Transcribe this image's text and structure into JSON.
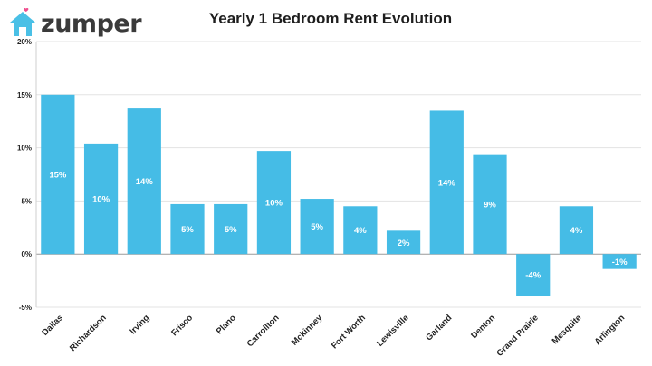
{
  "brand": {
    "name": "zumper",
    "color": "#4ac0e6",
    "heart_color": "#f0508f",
    "icon": "house-heart-icon"
  },
  "chart_data": {
    "type": "bar",
    "title": "Yearly 1 Bedroom Rent Evolution",
    "xlabel": "",
    "ylabel": "",
    "categories": [
      "Dallas",
      "Richardson",
      "Irving",
      "Frisco",
      "Plano",
      "Carrollton",
      "Mckinney",
      "Fort Worth",
      "Lewisville",
      "Garland",
      "Denton",
      "Grand Prairie",
      "Mesquite",
      "Arlington"
    ],
    "values": [
      15,
      10.4,
      13.7,
      4.7,
      4.7,
      9.7,
      5.2,
      4.5,
      2.2,
      13.5,
      9.4,
      -3.9,
      4.5,
      -1.4
    ],
    "data_labels": [
      "15%",
      "10%",
      "14%",
      "5%",
      "5%",
      "10%",
      "5%",
      "4%",
      "2%",
      "14%",
      "9%",
      "-4%",
      "4%",
      "-1%"
    ],
    "ylim": [
      -5,
      20
    ],
    "yticks": [
      -5,
      0,
      5,
      10,
      15,
      20
    ],
    "ytick_labels": [
      "-5%",
      "0%",
      "5%",
      "10%",
      "15%",
      "20%"
    ],
    "bar_color": "#45bce6",
    "grid": true,
    "legend": "none"
  }
}
